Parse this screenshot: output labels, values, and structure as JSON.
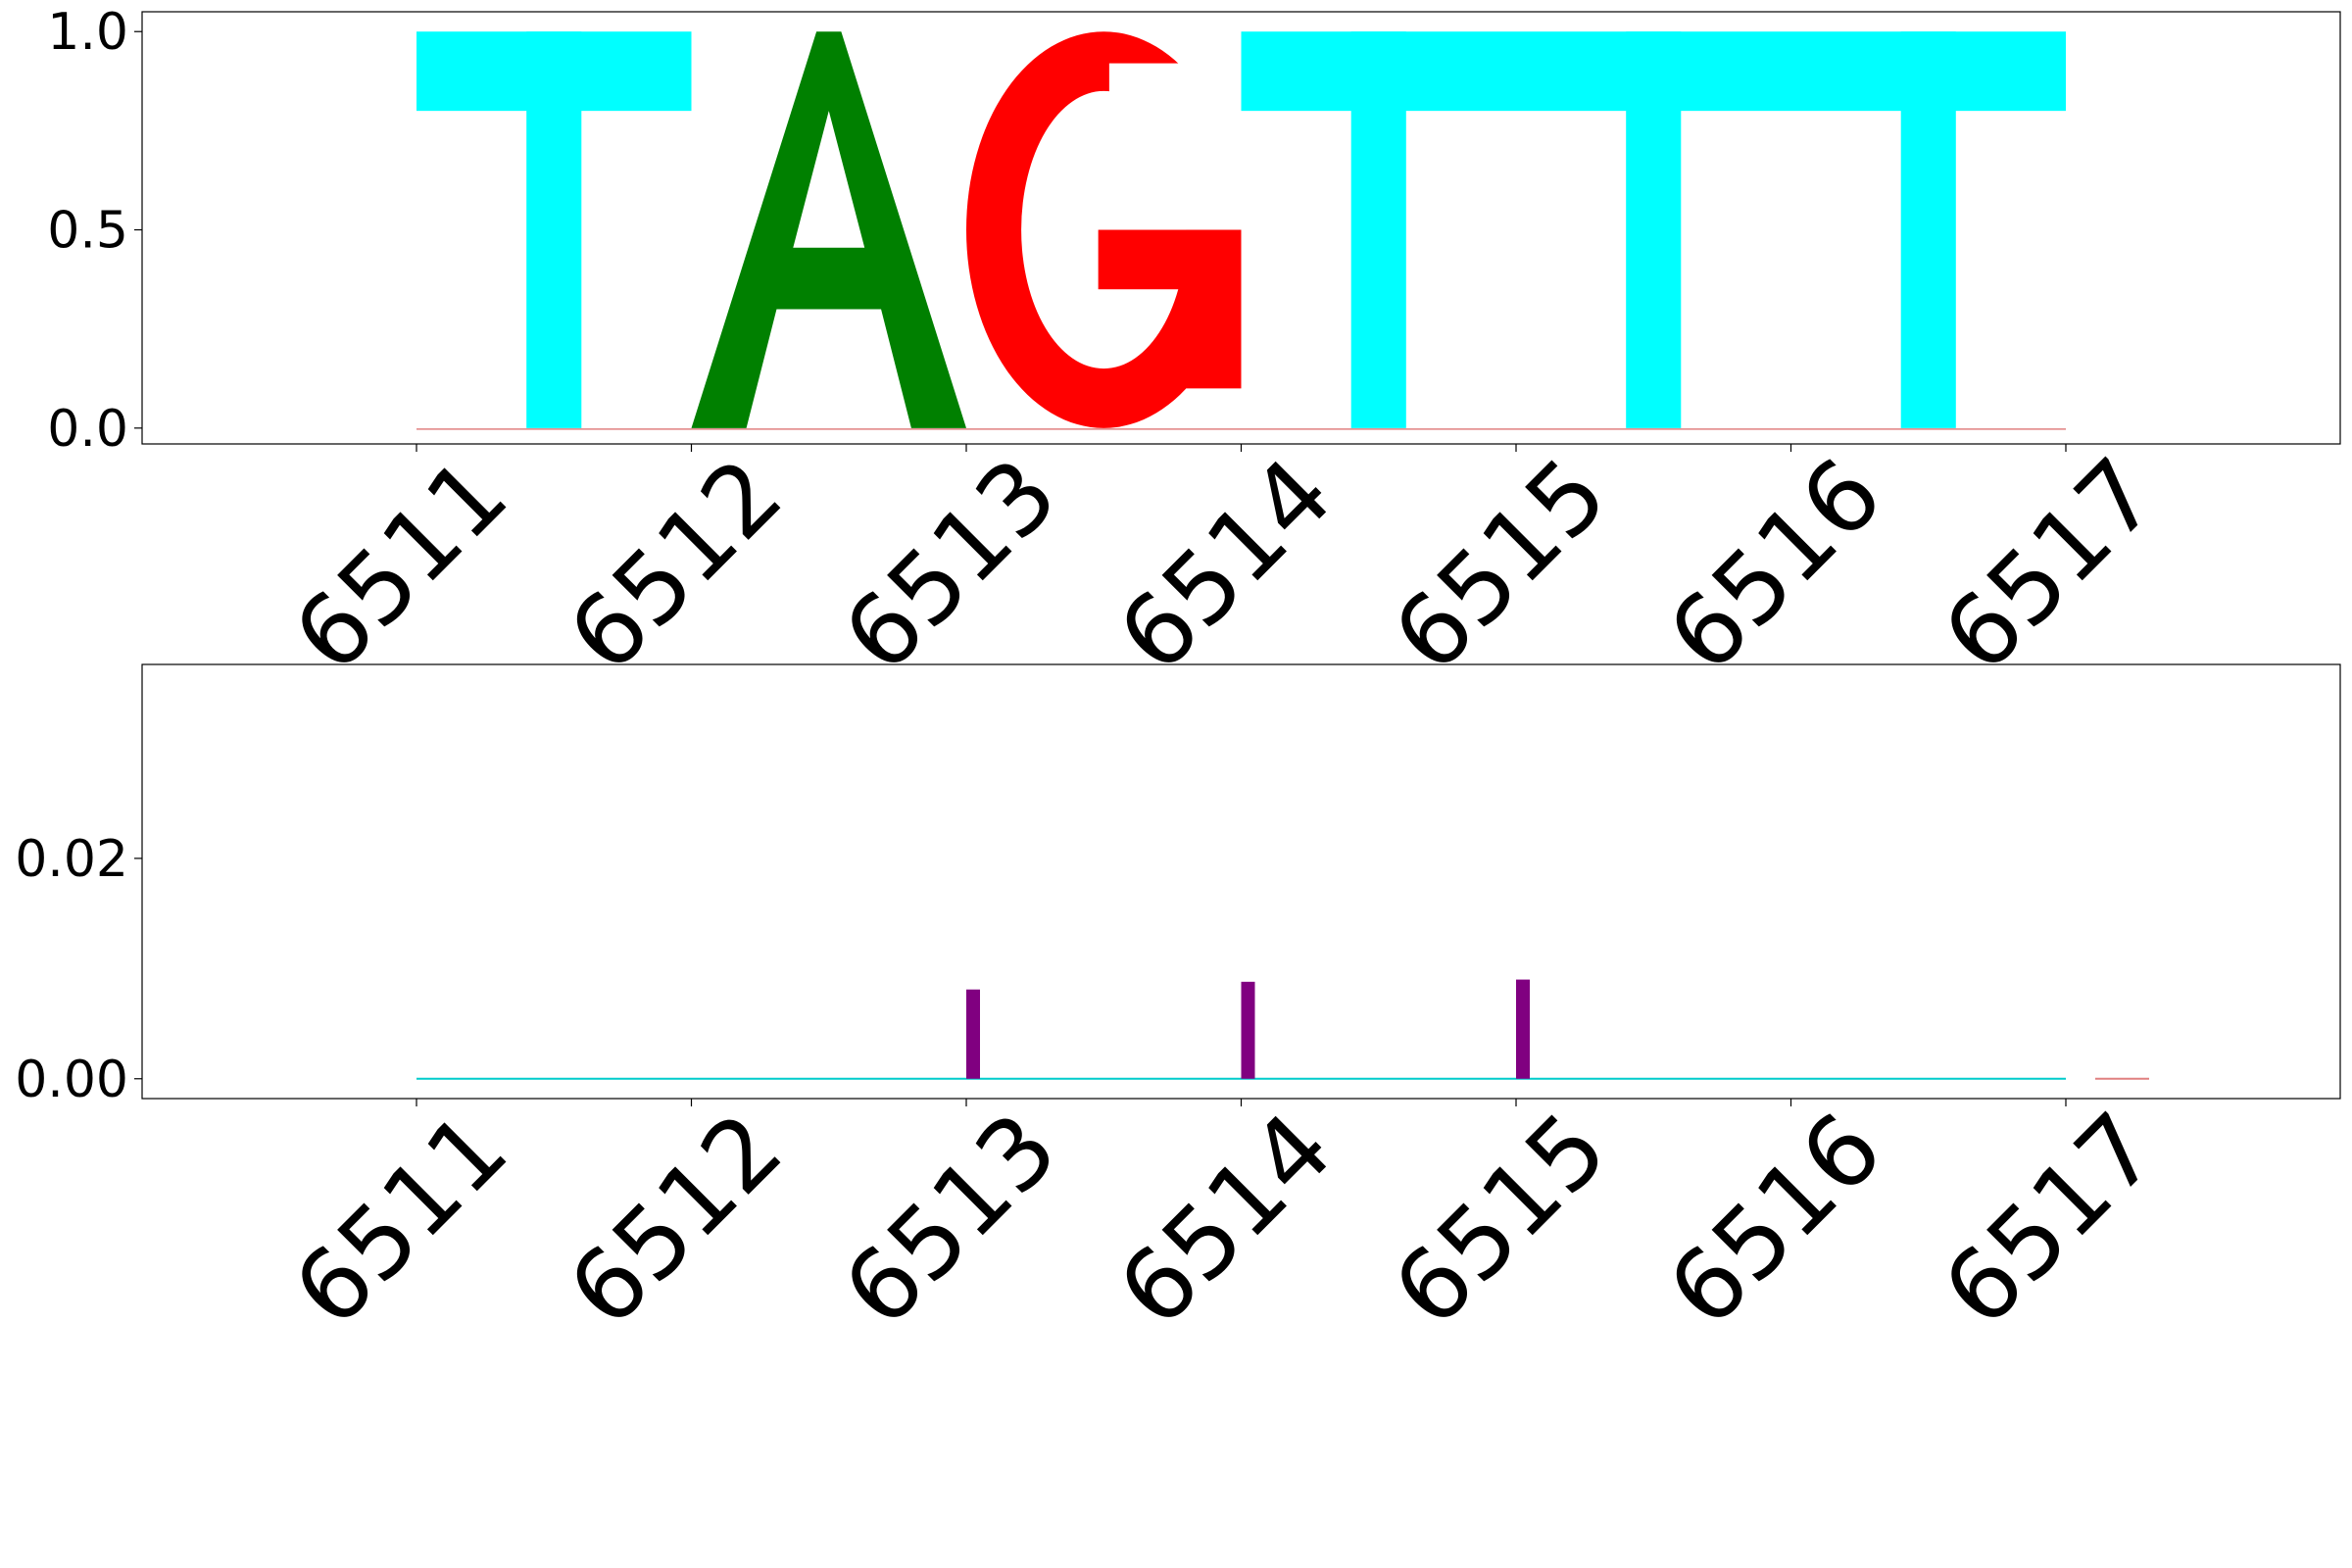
{
  "chart_data": [
    {
      "type": "bar",
      "subtype": "sequence-logo",
      "x": [
        6511,
        6512,
        6513,
        6514,
        6515,
        6516,
        6517
      ],
      "xtick_labels": [
        "6511",
        "6512",
        "6513",
        "6514",
        "6515",
        "6516",
        "6517"
      ],
      "ytick_labels": [
        "0.0",
        "0.5",
        "1.0"
      ],
      "ylim": [
        -0.04,
        1.05
      ],
      "letters": [
        "T",
        "A",
        "G",
        "T",
        "T",
        "T"
      ],
      "letter_heights": [
        1.0,
        1.0,
        1.0,
        1.0,
        1.0,
        1.0
      ],
      "letter_colors": [
        "#00ffff",
        "#008000",
        "#ff0000",
        "#00ffff",
        "#00ffff",
        "#00ffff"
      ],
      "title": "",
      "xlabel": "",
      "ylabel": "",
      "grid": false
    },
    {
      "type": "bar",
      "x": [
        6511,
        6512,
        6513,
        6514,
        6515,
        6516,
        6517
      ],
      "xtick_labels": [
        "6511",
        "6512",
        "6513",
        "6514",
        "6515",
        "6516",
        "6517"
      ],
      "ytick_labels": [
        "0.00",
        "0.02"
      ],
      "ylim": [
        -0.0018,
        0.0376
      ],
      "series": [
        {
          "color": "#800080",
          "values": [
            0.0,
            0.0,
            0.0081,
            0.0088,
            0.009,
            0.0,
            0.0
          ]
        }
      ],
      "title": "",
      "xlabel": "",
      "ylabel": "",
      "grid": false
    }
  ]
}
